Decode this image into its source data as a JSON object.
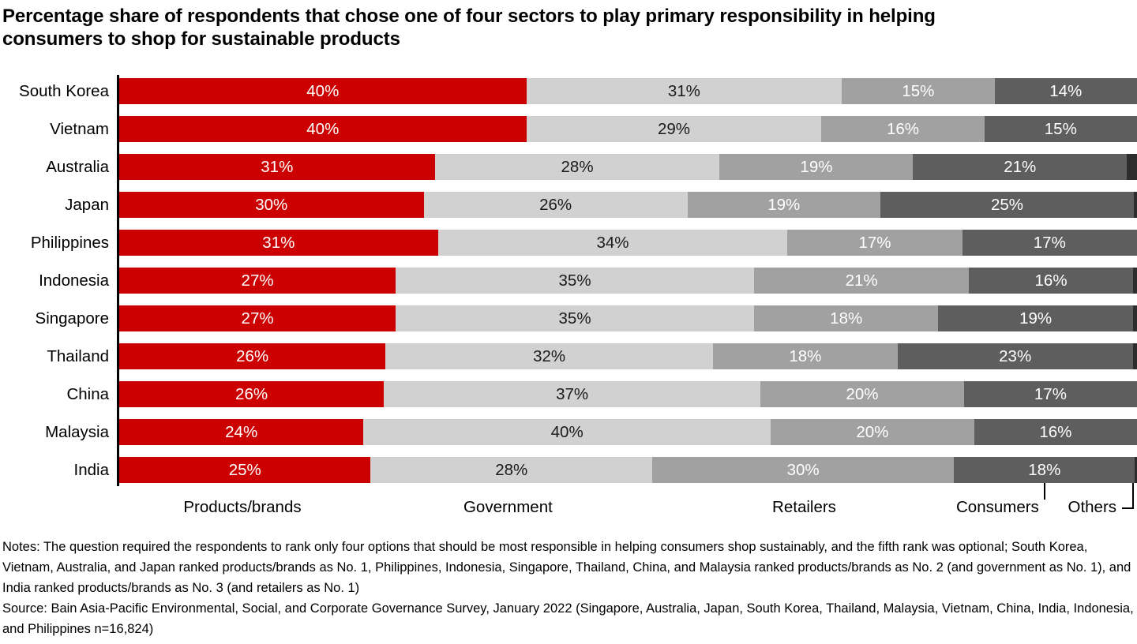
{
  "title": {
    "lines": [
      "Percentage share of respondents that chose one of four sectors to play primary responsibility in helping",
      "consumers to shop for sustainable products"
    ]
  },
  "chart_data": {
    "type": "bar",
    "orientation": "horizontal",
    "stacked": true,
    "value_suffix": "%",
    "title": "Percentage share of respondents that chose one of four sectors to play primary responsibility in helping consumers to shop for sustainable products",
    "categories": [
      "South Korea",
      "Vietnam",
      "Australia",
      "Japan",
      "Philippines",
      "Indonesia",
      "Singapore",
      "Thailand",
      "China",
      "Malaysia",
      "India"
    ],
    "series": [
      {
        "name": "Products/brands",
        "color": "#cc0000",
        "label_color": "#ffffff",
        "values": [
          40,
          40,
          31,
          30,
          31,
          27,
          27,
          26,
          26,
          24,
          25
        ]
      },
      {
        "name": "Government",
        "color": "#d1d1d1",
        "label_color": "#1a1a1a",
        "values": [
          31,
          29,
          28,
          26,
          34,
          35,
          35,
          32,
          37,
          40,
          28
        ]
      },
      {
        "name": "Retailers",
        "color": "#a1a1a1",
        "label_color": "#ffffff",
        "values": [
          15,
          16,
          19,
          19,
          17,
          21,
          18,
          18,
          20,
          20,
          30
        ]
      },
      {
        "name": "Consumers",
        "color": "#5e5e5e",
        "label_color": "#ffffff",
        "values": [
          14,
          15,
          21,
          25,
          17,
          16,
          19,
          23,
          17,
          16,
          18
        ]
      },
      {
        "name": "Others",
        "color": "#2d2d2d",
        "label_color": "#ffffff",
        "labels_hidden": true,
        "values": [
          0,
          0,
          1,
          0.3,
          0,
          0.4,
          0.4,
          0.4,
          0,
          0,
          0.2
        ]
      }
    ],
    "legend_position": "bottom",
    "grid": false
  },
  "footer": {
    "notes": "Notes: The question required the respondents to rank only four options that should be most responsible in helping consumers shop sustainably, and the fifth rank was optional; South Korea, Vietnam, Australia, and Japan ranked products/brands as No. 1, Philippines, Indonesia, Singapore, Thailand, China, and Malaysia ranked products/brands as No. 2 (and government as No. 1), and India ranked products/brands as No. 3 (and retailers as No. 1)",
    "source": "Source: Bain Asia-Pacific Environmental, Social, and Corporate Governance Survey, January 2022 (Singapore, Australia, Japan, South Korea, Thailand, Malaysia, Vietnam, China, India, Indonesia, and Philippines n=16,824)"
  }
}
